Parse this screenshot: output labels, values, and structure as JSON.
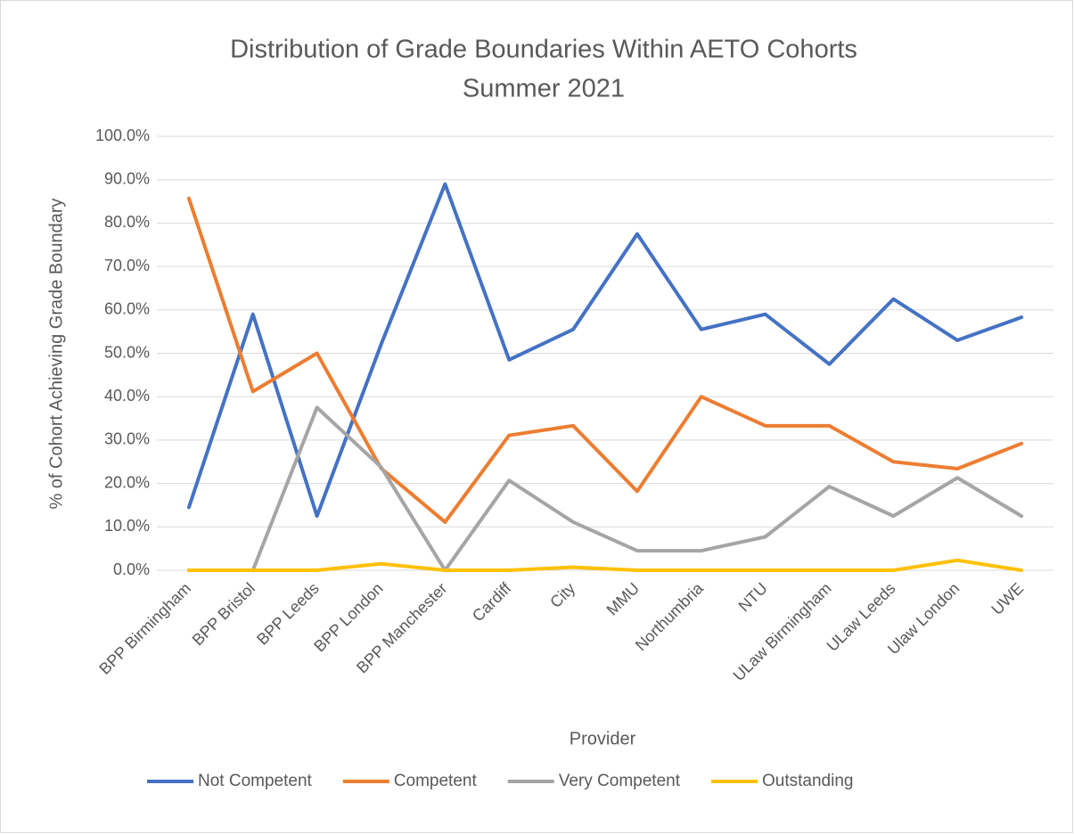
{
  "chart_data": {
    "type": "line",
    "title": "Distribution of Grade Boundaries Within AETO Cohorts",
    "subtitle": "Summer 2021",
    "x_label": "Provider",
    "y_label": "% of Cohort Achieving Grade Boundary",
    "categories": [
      "BPP Birmingham",
      "BPP Bristol",
      "BPP Leeds",
      "BPP London",
      "BPP Manchester",
      "Cardiff",
      "City",
      "MMU",
      "Northumbria",
      "NTU",
      "ULaw Birmingham",
      "ULaw Leeds",
      "Ulaw London",
      "UWE"
    ],
    "series": [
      {
        "name": "Not Competent",
        "color": "#4472c4",
        "values": [
          14.5,
          59,
          12.5,
          52,
          89,
          48.5,
          55.5,
          77.5,
          55.5,
          59,
          47.5,
          62.5,
          53,
          58.3
        ]
      },
      {
        "name": "Competent",
        "color": "#ed7d31",
        "values": [
          85.7,
          41.2,
          50,
          23.5,
          11.1,
          31.1,
          33.3,
          18.2,
          40,
          33.3,
          33.3,
          25,
          23.4,
          29.2
        ]
      },
      {
        "name": "Very Competent",
        "color": "#a5a5a5",
        "values": [
          0,
          0,
          37.5,
          23.8,
          0,
          20.7,
          11.1,
          4.5,
          4.5,
          7.7,
          19.3,
          12.5,
          21.3,
          12.5
        ]
      },
      {
        "name": "Outstanding",
        "color": "#ffc000",
        "values": [
          0,
          0,
          0,
          1.5,
          0,
          0,
          0.7,
          0,
          0,
          0,
          0,
          0,
          2.3,
          0
        ]
      }
    ],
    "ylim": [
      0,
      100
    ],
    "yticks": [
      {
        "value": 0,
        "label": "0.0%"
      },
      {
        "value": 10,
        "label": "10.0%"
      },
      {
        "value": 20,
        "label": "20.0%"
      },
      {
        "value": 30,
        "label": "30.0%"
      },
      {
        "value": 40,
        "label": "40.0%"
      },
      {
        "value": 50,
        "label": "50.0%"
      },
      {
        "value": 60,
        "label": "60.0%"
      },
      {
        "value": 70,
        "label": "70.0%"
      },
      {
        "value": 80,
        "label": "80.0%"
      },
      {
        "value": 90,
        "label": "90.0%"
      },
      {
        "value": 100,
        "label": "100.0%"
      }
    ],
    "grid": true,
    "legend": "bottom"
  }
}
